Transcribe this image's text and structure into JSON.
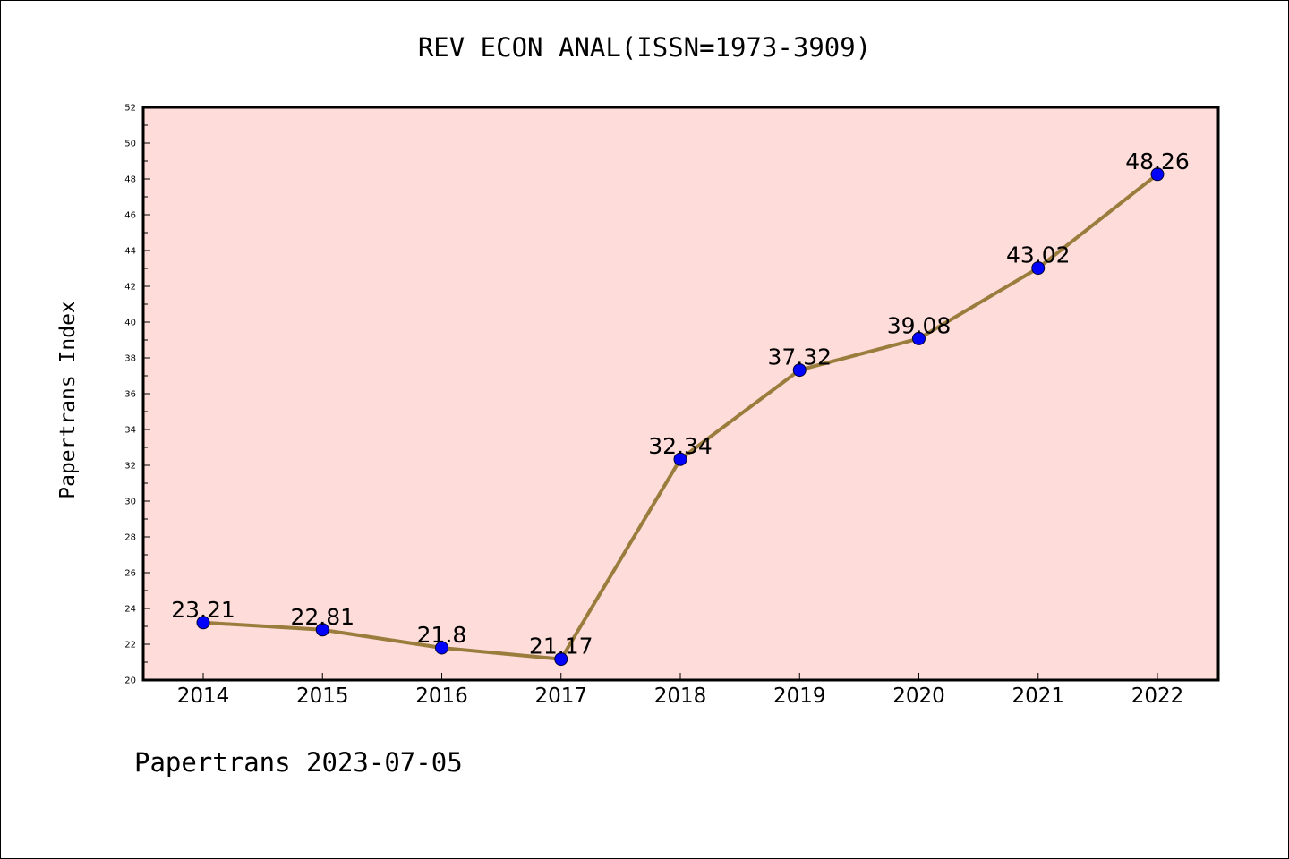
{
  "chart_data": {
    "type": "line",
    "title": "REV ECON ANAL(ISSN=1973-3909)",
    "xlabel": "",
    "ylabel": "Papertrans Index",
    "categories": [
      "2014",
      "2015",
      "2016",
      "2017",
      "2018",
      "2019",
      "2020",
      "2021",
      "2022"
    ],
    "values": [
      23.21,
      22.81,
      21.8,
      21.17,
      32.34,
      37.32,
      39.08,
      43.02,
      48.26
    ],
    "value_labels": [
      "23.21",
      "22.81",
      "21.8",
      "21.17",
      "32.34",
      "37.32",
      "39.08",
      "43.02",
      "48.26"
    ],
    "ylim": [
      20,
      52
    ],
    "yticks": [
      20,
      22,
      24,
      26,
      28,
      30,
      32,
      34,
      36,
      38,
      40,
      42,
      44,
      46,
      48,
      50,
      52
    ],
    "grid": false,
    "colors": {
      "plot_background": "#fddcd9",
      "line": "#9a7c3c",
      "marker": "#0000ff",
      "axes": "#000000"
    }
  },
  "footer": "Papertrans 2023-07-05"
}
